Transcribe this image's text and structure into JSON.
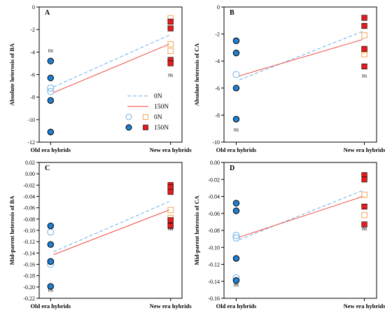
{
  "colors": {
    "line_0N": "#6aaee8",
    "line_150N": "#ef4a42",
    "old_filled": "#1f7fd4",
    "new_filled": "#e41a1c",
    "old_open": "#6aaee8",
    "new_open": "#f5a55a",
    "axis": "#000000"
  },
  "chart_data": [
    {
      "panel": "A",
      "type": "scatter",
      "ylabel": "Absolute heterosis of BA",
      "categories": [
        "Old era hybrids",
        "New era hybrids"
      ],
      "ylim": [
        -12,
        0
      ],
      "yticks": [
        0,
        -2,
        -4,
        -6,
        -8,
        -10,
        -12
      ],
      "ytick_labels": [
        "0",
        "-2",
        "-4",
        "-6",
        "-8",
        "-10",
        "-12"
      ],
      "series": [
        {
          "name": "0N",
          "marker": "open",
          "old": [
            -7.2,
            -7.5
          ],
          "new": [
            -1.0,
            -3.3,
            -3.9
          ]
        },
        {
          "name": "150N",
          "marker": "filled",
          "old": [
            -4.8,
            -6.3,
            -8.3,
            -11.1
          ],
          "new": [
            -1.3,
            -1.9,
            -4.7,
            -5.0
          ]
        }
      ],
      "trend_lines": [
        {
          "name": "0N",
          "style": "dashed",
          "y": [
            -7.1,
            -2.5
          ]
        },
        {
          "name": "150N",
          "style": "solid",
          "y": [
            -7.6,
            -3.3
          ]
        }
      ],
      "annotations": [
        {
          "text": "ns",
          "category": "Old era hybrids",
          "y": -4.0
        },
        {
          "text": "ns",
          "category": "New era hybrids",
          "y": -6.2
        }
      ],
      "legend": {
        "lines": [
          "0N",
          "150N"
        ],
        "markers": [
          "0N",
          "150N"
        ]
      }
    },
    {
      "panel": "B",
      "type": "scatter",
      "ylabel": "Absolute heterosis of CA",
      "categories": [
        "Old era hybrids",
        "New era hybrids"
      ],
      "ylim": [
        -10,
        0
      ],
      "yticks": [
        0,
        -2,
        -4,
        -6,
        -8,
        -10
      ],
      "ytick_labels": [
        "0",
        "-2",
        "-4",
        "-6",
        "-8",
        "-10"
      ],
      "series": [
        {
          "name": "0N",
          "marker": "open",
          "old": [
            -5.0
          ],
          "new": [
            -2.1,
            -3.2,
            -3.5
          ]
        },
        {
          "name": "150N",
          "marker": "filled",
          "old": [
            -2.5,
            -3.4,
            -6.0,
            -8.3
          ],
          "new": [
            -0.8,
            -1.4,
            -3.1,
            -4.4
          ]
        }
      ],
      "trend_lines": [
        {
          "name": "0N",
          "style": "dashed",
          "y": [
            -5.4,
            -1.8
          ]
        },
        {
          "name": "150N",
          "style": "solid",
          "y": [
            -5.1,
            -2.4
          ]
        }
      ],
      "annotations": [
        {
          "text": "ns",
          "category": "Old era hybrids",
          "y": -9.2
        },
        {
          "text": "ns",
          "category": "New era hybrids",
          "y": -5.2
        }
      ]
    },
    {
      "panel": "C",
      "type": "scatter",
      "ylabel": "Mid-parent heterosis of BA",
      "categories": [
        "Old era hybrids",
        "New era hybrids"
      ],
      "ylim": [
        -0.22,
        0.02
      ],
      "yticks": [
        0.02,
        0.0,
        -0.02,
        -0.04,
        -0.06,
        -0.08,
        -0.1,
        -0.12,
        -0.14,
        -0.16,
        -0.18,
        -0.2,
        -0.22
      ],
      "ytick_labels": [
        "0.02",
        "0.00",
        "-0.02",
        "-0.04",
        "-0.06",
        "-0.08",
        "-0.10",
        "-0.12",
        "-0.14",
        "-0.16",
        "-0.18",
        "-0.20",
        "-0.22"
      ],
      "series": [
        {
          "name": "0N",
          "marker": "open",
          "old": [
            -0.103,
            -0.155,
            -0.16
          ],
          "new": [
            -0.064,
            -0.078
          ]
        },
        {
          "name": "150N",
          "marker": "filled",
          "old": [
            -0.092,
            -0.125,
            -0.155,
            -0.199
          ],
          "new": [
            -0.02,
            -0.024,
            -0.032,
            -0.082,
            -0.092
          ]
        }
      ],
      "trend_lines": [
        {
          "name": "0N",
          "style": "dashed",
          "y": [
            -0.138,
            -0.049
          ]
        },
        {
          "name": "150N",
          "style": "solid",
          "y": [
            -0.143,
            -0.064
          ]
        }
      ],
      "annotations": [
        {
          "text": "ns",
          "category": "Old era hybrids",
          "y": -0.208
        },
        {
          "text": "ns",
          "category": "New era hybrids",
          "y": -0.1
        }
      ]
    },
    {
      "panel": "D",
      "type": "scatter",
      "ylabel": "Mid-parent heterosis of CA",
      "categories": [
        "Old era hybrids",
        "New era hybrids"
      ],
      "ylim": [
        -0.16,
        0.0
      ],
      "yticks": [
        0.0,
        -0.02,
        -0.04,
        -0.06,
        -0.08,
        -0.1,
        -0.12,
        -0.14,
        -0.16
      ],
      "ytick_labels": [
        "0.00",
        "-0.02",
        "-0.04",
        "-0.06",
        "-0.08",
        "-0.10",
        "-0.12",
        "-0.14",
        "-0.16"
      ],
      "series": [
        {
          "name": "0N",
          "marker": "open",
          "old": [
            -0.086,
            -0.089,
            -0.136
          ],
          "new": [
            -0.038,
            -0.062
          ]
        },
        {
          "name": "150N",
          "marker": "filled",
          "old": [
            -0.048,
            -0.057,
            -0.113,
            -0.139
          ],
          "new": [
            -0.015,
            -0.02,
            -0.052,
            -0.073
          ]
        }
      ],
      "trend_lines": [
        {
          "name": "0N",
          "style": "dashed",
          "y": [
            -0.091,
            -0.033
          ]
        },
        {
          "name": "150N",
          "style": "solid",
          "y": [
            -0.088,
            -0.04
          ]
        }
      ],
      "annotations": [
        {
          "text": "ns",
          "category": "Old era hybrids",
          "y": -0.146
        },
        {
          "text": "ns",
          "category": "New era hybrids",
          "y": -0.08
        }
      ]
    }
  ]
}
